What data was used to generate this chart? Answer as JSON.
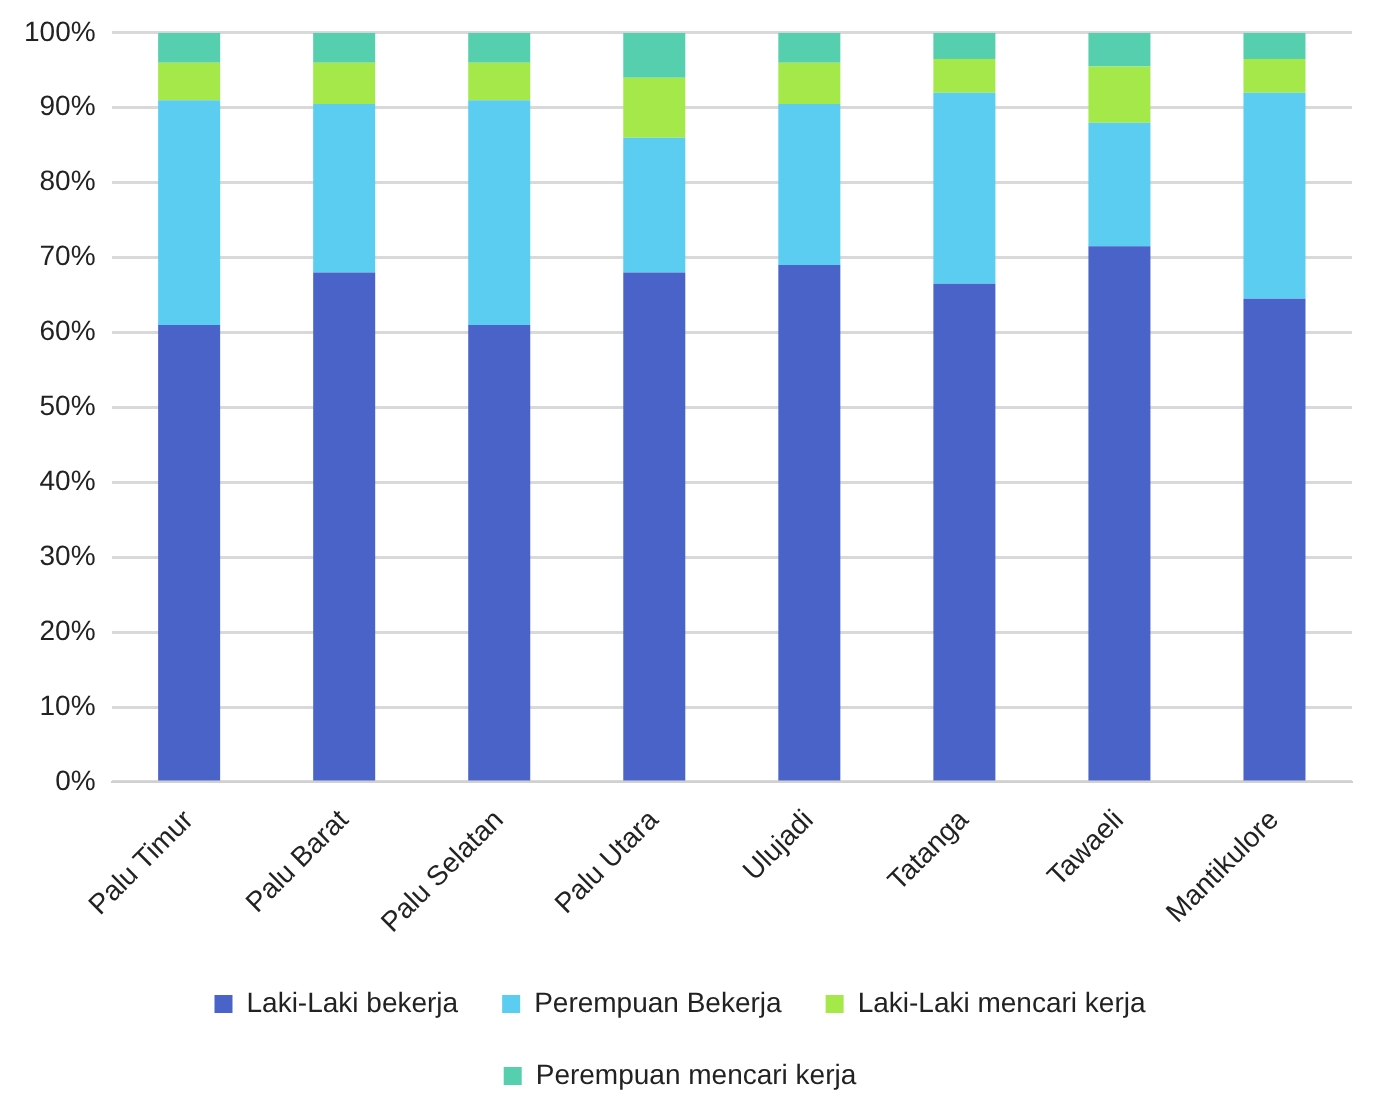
{
  "chart_data": {
    "type": "bar",
    "stacked": true,
    "categories": [
      "Palu Timur",
      "Palu Barat",
      "Palu Selatan",
      "Palu Utara",
      "Ulujadi",
      "Tatanga",
      "Tawaeli",
      "Mantikulore"
    ],
    "series": [
      {
        "name": "Laki-Laki bekerja",
        "color": "#4a63c8",
        "values": [
          61,
          68,
          61,
          68,
          69,
          66.5,
          71.5,
          64.5
        ]
      },
      {
        "name": "Perempuan Bekerja",
        "color": "#5bcdf0",
        "values": [
          30,
          22.5,
          30,
          18,
          21.5,
          25.5,
          16.5,
          27.5
        ]
      },
      {
        "name": "Laki-Laki mencari kerja",
        "color": "#a4e84a",
        "values": [
          5,
          5.5,
          5,
          8,
          5.5,
          4.5,
          7.5,
          4.5
        ]
      },
      {
        "name": "Perempuan mencari kerja",
        "color": "#56cfae",
        "values": [
          4,
          4,
          4,
          6,
          4,
          3.5,
          4.5,
          3.5
        ]
      }
    ],
    "ylim": [
      0,
      100
    ],
    "yticks": [
      {
        "value": 0,
        "label": "0%"
      },
      {
        "value": 10,
        "label": "10%"
      },
      {
        "value": 20,
        "label": "20%"
      },
      {
        "value": 30,
        "label": "30%"
      },
      {
        "value": 40,
        "label": "40%"
      },
      {
        "value": 50,
        "label": "50%"
      },
      {
        "value": 60,
        "label": "60%"
      },
      {
        "value": 70,
        "label": "70%"
      },
      {
        "value": 80,
        "label": "80%"
      },
      {
        "value": 90,
        "label": "90%"
      },
      {
        "value": 100,
        "label": "100%"
      }
    ],
    "grid": "y",
    "legend": "bottom"
  }
}
